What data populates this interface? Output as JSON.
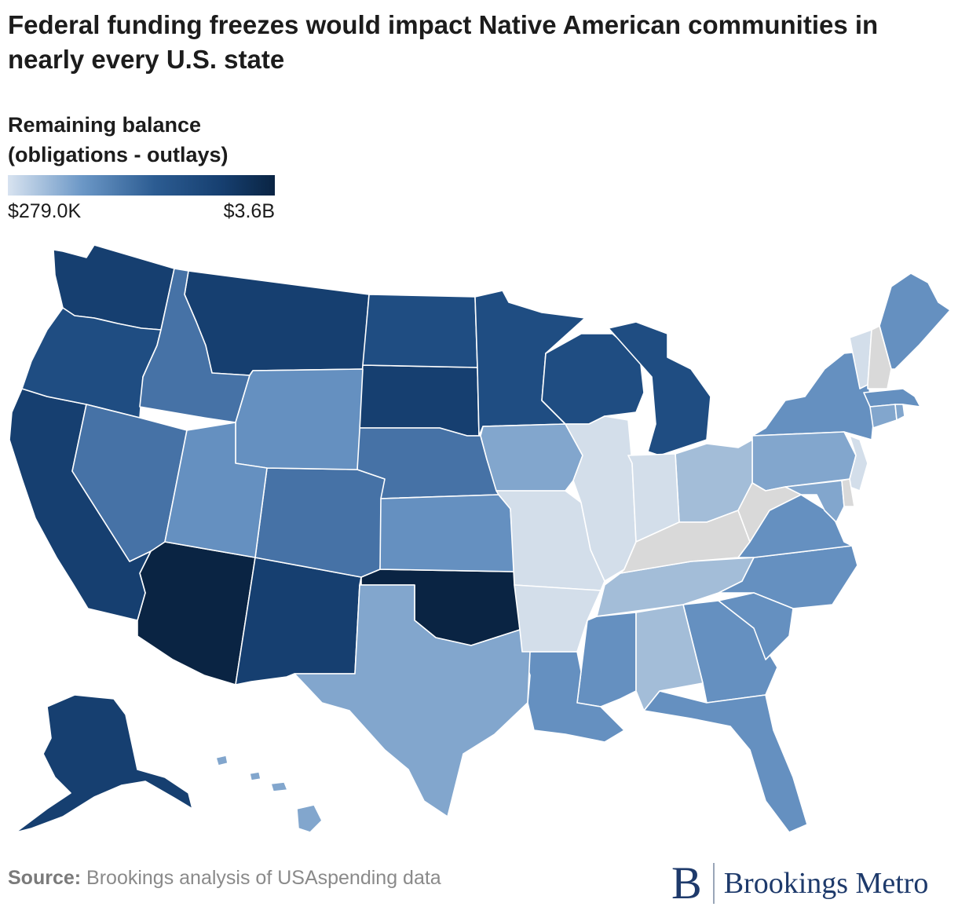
{
  "title": "Federal funding freezes would impact Native American communities in nearly every U.S. state",
  "legend": {
    "title_line1": "Remaining balance",
    "title_line2": "(obligations - outlays)",
    "min_label": "$279.0K",
    "max_label": "$3.6B",
    "color_low": "#d8e3f0",
    "color_high": "#0a2443",
    "no_data_color": "#d9d9d9"
  },
  "map_data": {
    "type": "choropleth",
    "shading_levels": {
      "darkest": "#0a2443",
      "very_dark": "#163f70",
      "dark": "#1f4d82",
      "mid_dark": "#2c5c92",
      "mid": "#4672a6",
      "mid_light": "#6590c0",
      "light": "#82a6cd",
      "lighter": "#a3bdd8",
      "pale": "#d3deea",
      "no_data": "#d9d9d9"
    },
    "states": {
      "AZ": "darkest",
      "OK": "darkest",
      "WA": "very_dark",
      "CA": "very_dark",
      "MT": "very_dark",
      "SD": "very_dark",
      "NM": "very_dark",
      "AK": "very_dark",
      "OR": "dark",
      "ND": "dark",
      "MN": "dark",
      "WI": "dark",
      "MI": "dark",
      "NV": "mid",
      "ID": "mid",
      "CO": "mid",
      "NE": "mid",
      "WY": "mid_light",
      "UT": "mid_light",
      "KS": "mid_light",
      "NY": "mid_light",
      "ME": "mid_light",
      "NC": "mid_light",
      "VA": "mid_light",
      "MS": "mid_light",
      "LA": "mid_light",
      "GA": "mid_light",
      "SC": "mid_light",
      "FL": "mid_light",
      "MA": "mid_light",
      "TX": "light",
      "IA": "light",
      "PA": "light",
      "HI": "light",
      "CT": "light",
      "RI": "light",
      "MD": "light",
      "OH": "lighter",
      "AL": "lighter",
      "TN": "lighter",
      "MO": "pale",
      "IL": "pale",
      "IN": "pale",
      "AR": "pale",
      "NJ": "pale",
      "VT": "pale",
      "KY": "no_data",
      "WV": "no_data",
      "NH": "no_data",
      "DE": "no_data"
    }
  },
  "source_label": "Source:",
  "source_text": " Brookings analysis of USAspending data",
  "logo": {
    "mark": "B",
    "text": "Brookings Metro"
  }
}
